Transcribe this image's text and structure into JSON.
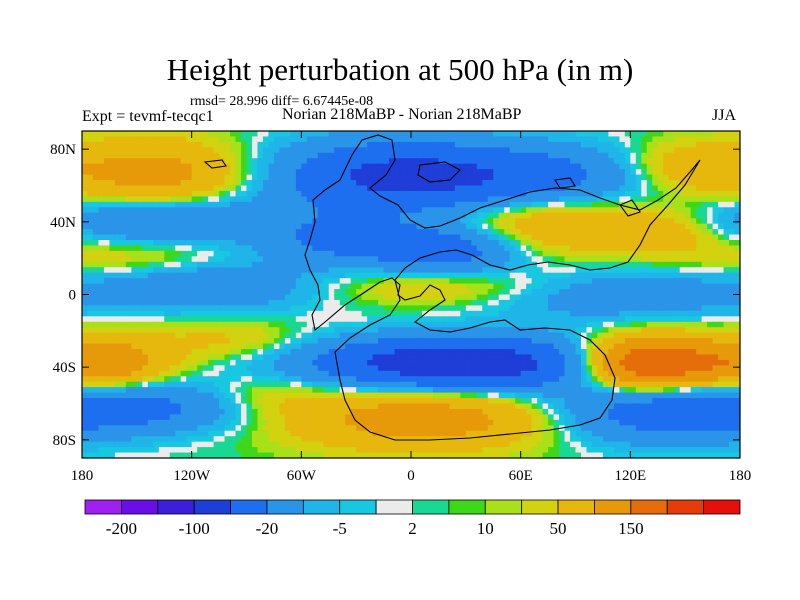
{
  "header": {
    "title": "Height perturbation at 500 hPa (in m)",
    "stats": "rmsd= 28.996 diff= 6.67445e-08",
    "experiment": "Expt = tevmf-tecqc1",
    "comparison": "Norian 218MaBP - Norian 218MaBP",
    "season": "JJA"
  },
  "map": {
    "lon_range": [
      -180,
      180
    ],
    "lat_range": [
      -90,
      90
    ],
    "lat_ticks": [
      {
        "value": 80,
        "label": "80N"
      },
      {
        "value": 40,
        "label": "40N"
      },
      {
        "value": 0,
        "label": "0"
      },
      {
        "value": -40,
        "label": "40S"
      },
      {
        "value": -80,
        "label": "80S"
      }
    ],
    "lon_ticks": [
      {
        "value": -180,
        "label": "180"
      },
      {
        "value": -120,
        "label": "120W"
      },
      {
        "value": -60,
        "label": "60W"
      },
      {
        "value": 0,
        "label": "0"
      },
      {
        "value": 60,
        "label": "60E"
      },
      {
        "value": 120,
        "label": "120E"
      },
      {
        "value": 180,
        "label": "180"
      }
    ],
    "field_features": [
      {
        "lon": -140,
        "lat": 65,
        "amp": 70,
        "wlon": 35,
        "wlat": 14
      },
      {
        "lon": -140,
        "lat": 42,
        "amp": -60,
        "wlon": 45,
        "wlat": 10
      },
      {
        "lon": -150,
        "lat": 20,
        "amp": 25,
        "wlon": 40,
        "wlat": 8
      },
      {
        "lon": -110,
        "lat": 5,
        "amp": -45,
        "wlon": 45,
        "wlat": 10
      },
      {
        "lon": -170,
        "lat": -38,
        "amp": 90,
        "wlon": 25,
        "wlat": 10
      },
      {
        "lon": -150,
        "lat": -62,
        "amp": -60,
        "wlon": 45,
        "wlat": 10
      },
      {
        "lon": -100,
        "lat": -25,
        "amp": 25,
        "wlon": 30,
        "wlat": 8
      },
      {
        "lon": -80,
        "lat": -55,
        "amp": 20,
        "wlon": 25,
        "wlat": 8
      },
      {
        "lon": -10,
        "lat": 65,
        "amp": -110,
        "wlon": 45,
        "wlat": 14
      },
      {
        "lon": 70,
        "lat": 65,
        "amp": -60,
        "wlon": 45,
        "wlat": 12
      },
      {
        "lon": 150,
        "lat": 70,
        "amp": 40,
        "wlon": 25,
        "wlat": 10
      },
      {
        "lon": -40,
        "lat": 30,
        "amp": -50,
        "wlon": 30,
        "wlat": 10
      },
      {
        "lon": 20,
        "lat": 25,
        "amp": -80,
        "wlon": 30,
        "wlat": 10
      },
      {
        "lon": 70,
        "lat": 38,
        "amp": 50,
        "wlon": 40,
        "wlat": 12
      },
      {
        "lon": 140,
        "lat": 35,
        "amp": 30,
        "wlon": 25,
        "wlat": 10
      },
      {
        "lon": 20,
        "lat": 5,
        "amp": 30,
        "wlon": 50,
        "wlat": 8
      },
      {
        "lon": 110,
        "lat": 0,
        "amp": -40,
        "wlon": 50,
        "wlat": 10
      },
      {
        "lon": 25,
        "lat": -38,
        "amp": -150,
        "wlon": 55,
        "wlat": 10
      },
      {
        "lon": 130,
        "lat": -38,
        "amp": 170,
        "wlon": 25,
        "wlat": 10
      },
      {
        "lon": 10,
        "lat": -68,
        "amp": 75,
        "wlon": 55,
        "wlat": 12
      },
      {
        "lon": 130,
        "lat": -65,
        "amp": -70,
        "wlon": 45,
        "wlat": 12
      }
    ],
    "coastline_color": "#000000"
  },
  "colorbar": {
    "colors": [
      "#a020f0",
      "#6a0ee8",
      "#3c1fd7",
      "#1f3dd7",
      "#1e6ef0",
      "#2a95e8",
      "#1fb5e8",
      "#17c8e0",
      "#ebebeb",
      "#19d894",
      "#3fd719",
      "#a8e019",
      "#d2d210",
      "#e6b80d",
      "#e69a0a",
      "#e66e0a",
      "#e63c0a",
      "#e60f0a"
    ],
    "labels": [
      {
        "after_box": 1,
        "text": "-200"
      },
      {
        "after_box": 3,
        "text": "-100"
      },
      {
        "after_box": 5,
        "text": "-20"
      },
      {
        "after_box": 7,
        "text": "-5"
      },
      {
        "after_box": 9,
        "text": "2"
      },
      {
        "after_box": 11,
        "text": "10"
      },
      {
        "after_box": 13,
        "text": "50"
      },
      {
        "after_box": 15,
        "text": "150"
      }
    ],
    "levels": [
      -250,
      -200,
      -150,
      -100,
      -50,
      -20,
      -10,
      -5,
      -2,
      2,
      5,
      10,
      20,
      50,
      100,
      150,
      200
    ]
  }
}
